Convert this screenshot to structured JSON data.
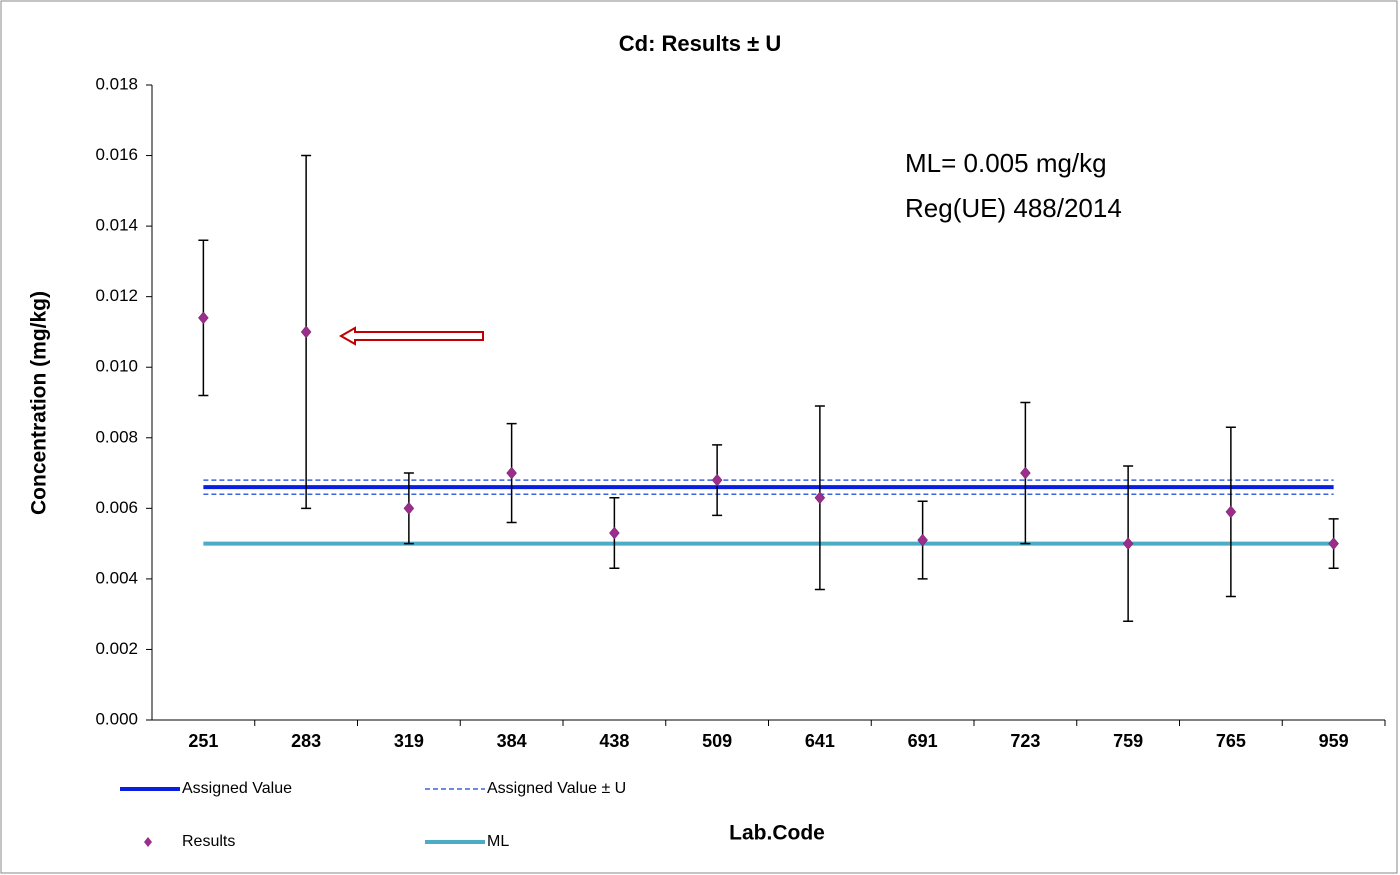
{
  "chart_data": {
    "type": "errorbar",
    "title": "Cd: Results ± U",
    "x_label": "Lab.Code",
    "y_label": "Concentration (mg/kg)",
    "annotations": [
      "ML= 0.005 mg/kg",
      "Reg(UE) 488/2014"
    ],
    "categories": [
      "251",
      "283",
      "319",
      "384",
      "438",
      "509",
      "641",
      "691",
      "723",
      "759",
      "765",
      "959"
    ],
    "series": [
      {
        "name": "Results",
        "color": "#9b2d8c",
        "values": [
          0.0114,
          0.011,
          0.006,
          0.007,
          0.0053,
          0.0068,
          0.0063,
          0.0051,
          0.007,
          0.005,
          0.0059,
          0.005
        ],
        "errors": [
          0.0022,
          0.005,
          0.001,
          0.0014,
          0.001,
          0.001,
          0.0026,
          0.0011,
          0.002,
          0.0022,
          0.0024,
          0.0007
        ]
      }
    ],
    "reference_lines": [
      {
        "name": "Assigned Value",
        "color": "#0a1ee0",
        "style": "solid",
        "values": [
          0.0066
        ]
      },
      {
        "name": "Assigned Value ± U",
        "color": "#3a64e0",
        "style": "dashed",
        "values": [
          0.0064,
          0.0068
        ]
      },
      {
        "name": "ML",
        "color": "#4bacc6",
        "style": "solid",
        "values": [
          0.005
        ]
      }
    ],
    "ylim": [
      0,
      0.018
    ],
    "yticks": [
      {
        "value": 0,
        "label": "0.000"
      },
      0.002,
      0.004,
      0.006,
      0.008,
      {
        "value": 0.01,
        "label": "0.010"
      },
      0.012,
      0.014,
      0.016,
      0.018
    ],
    "grid": false
  }
}
